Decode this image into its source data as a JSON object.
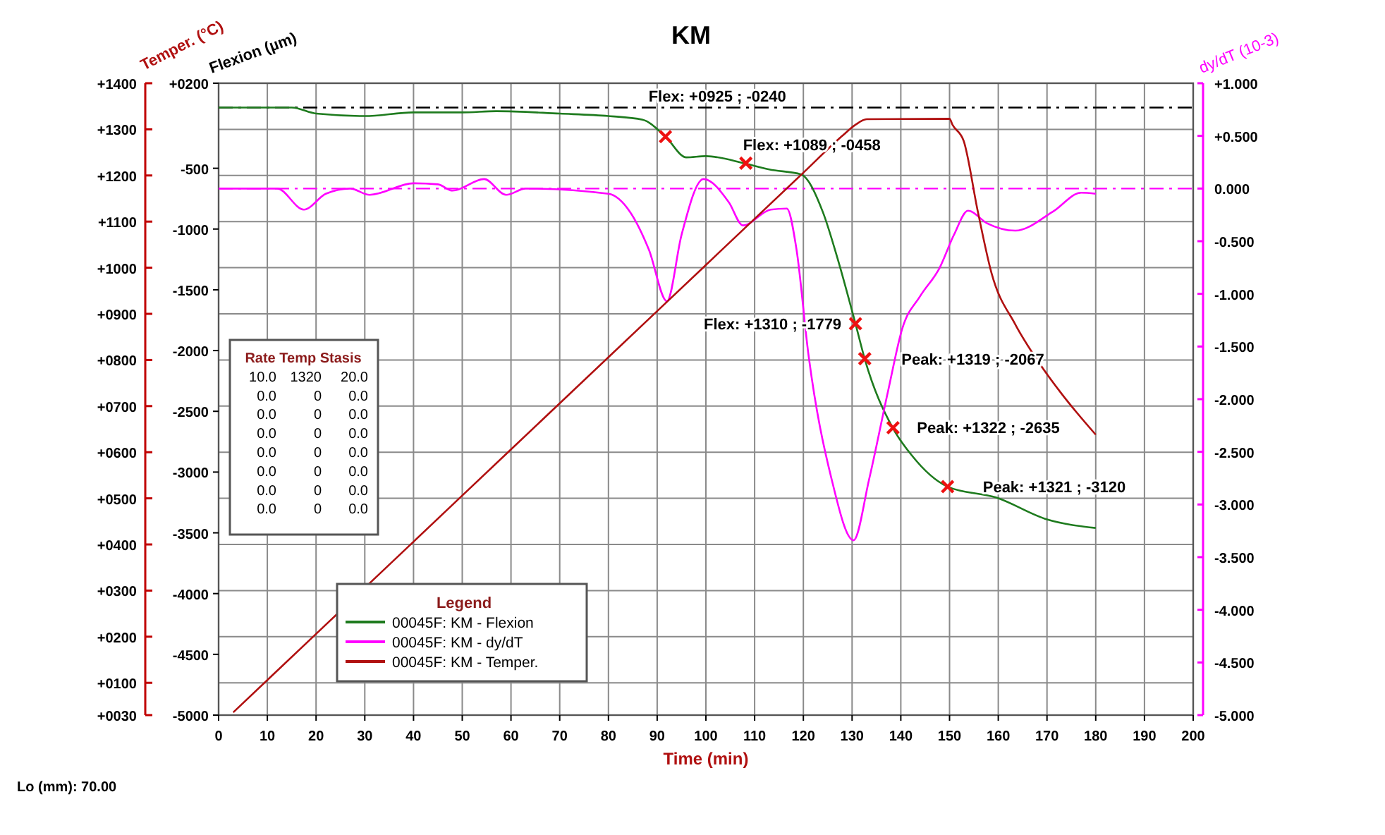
{
  "chart_data": {
    "type": "line",
    "title": "KM",
    "xlabel": "Time (min)",
    "ylabel": "Temper. (°C)",
    "y2label": "dy/dT (10-3)",
    "y3label": "Flexion (µm)",
    "legend_title": "Legend",
    "legend": "bottom left",
    "grid": true,
    "marker": "none",
    "line_style": "solid",
    "xlim": [
      0,
      200
    ],
    "xticks": [
      0,
      10,
      20,
      30,
      40,
      50,
      60,
      70,
      80,
      90,
      100,
      110,
      120,
      130,
      140,
      150,
      160,
      170,
      180,
      190,
      200
    ],
    "ylim": [
      30,
      1400
    ],
    "yticks": [
      {
        "value": 1400,
        "label": "+1400"
      },
      {
        "value": 1300,
        "label": "+1300"
      },
      {
        "value": 1200,
        "label": "+1200"
      },
      {
        "value": 1100,
        "label": "+1100"
      },
      {
        "value": 1000,
        "label": "+1000"
      },
      {
        "value": 900,
        "label": "+0900"
      },
      {
        "value": 800,
        "label": "+0800"
      },
      {
        "value": 700,
        "label": "+0700"
      },
      {
        "value": 600,
        "label": "+0600"
      },
      {
        "value": 500,
        "label": "+0500"
      },
      {
        "value": 400,
        "label": "+0400"
      },
      {
        "value": 300,
        "label": "+0300"
      },
      {
        "value": 200,
        "label": "+0200"
      },
      {
        "value": 100,
        "label": "+0100"
      },
      {
        "value": 30,
        "label": "+0030"
      }
    ],
    "y2lim": [
      -5,
      1
    ],
    "y2ticks": [
      {
        "value": 1,
        "label": "+1.000"
      },
      {
        "value": 0.5,
        "label": "+0.500"
      },
      {
        "value": 0,
        "label": "0.000"
      },
      {
        "value": -0.5,
        "label": "-0.500"
      },
      {
        "value": -1,
        "label": "-1.000"
      },
      {
        "value": -1.5,
        "label": "-1.500"
      },
      {
        "value": -2,
        "label": "-2.000"
      },
      {
        "value": -2.5,
        "label": "-2.500"
      },
      {
        "value": -3,
        "label": "-3.000"
      },
      {
        "value": -3.5,
        "label": "-3.500"
      },
      {
        "value": -4,
        "label": "-4.000"
      },
      {
        "value": -4.5,
        "label": "-4.500"
      },
      {
        "value": -5,
        "label": "-5.000"
      }
    ],
    "y3lim": [
      -5000,
      200
    ],
    "y3ticks": [
      {
        "value": 200,
        "label": "+0200"
      },
      -500,
      -1000,
      -1500,
      -2000,
      -2500,
      -3000,
      -3500,
      -4000,
      -4500,
      -5000
    ],
    "ref_lines": [
      {
        "axis": "y3",
        "value": 0,
        "color": "#000000",
        "line_style": "dashed"
      },
      {
        "axis": "y2",
        "value": 0,
        "color": "#ff00ff",
        "line_style": "dashed"
      }
    ],
    "series": [
      {
        "name": "00045F: KM - Flexion",
        "color": "#1e7b1e",
        "axis": "y3",
        "x": [
          0,
          10,
          15,
          20,
          30,
          40,
          50,
          57,
          70,
          80,
          87,
          91.7,
          96,
          100,
          108,
          113,
          119.5,
          124,
          127,
          130.7,
          132.6,
          138.4,
          142.2,
          149.6,
          159.6,
          170,
          180
        ],
        "values": [
          0,
          0,
          0,
          -50,
          -70,
          -40,
          -40,
          -30,
          -50,
          -70,
          -100,
          -240,
          -410,
          -400,
          -460,
          -510,
          -550,
          -860,
          -1240,
          -1780,
          -2070,
          -2640,
          -2860,
          -3120,
          -3210,
          -3390,
          -3460
        ]
      },
      {
        "name": "00045F: KM - dy/dT",
        "color": "#ff00ff",
        "axis": "y2",
        "x": [
          0,
          12,
          17.5,
          22,
          27,
          31,
          40,
          45,
          48,
          54.5,
          59,
          63,
          80,
          84.4,
          88.3,
          92,
          95,
          99.5,
          104.7,
          107.6,
          113.3,
          116.6,
          118.6,
          121,
          125.8,
          130.3,
          133.5,
          137.4,
          140.3,
          144,
          148,
          150.9,
          153.8,
          157.7,
          163.5,
          171.2,
          177,
          180
        ],
        "values": [
          0,
          0,
          -0.2,
          -0.05,
          0,
          -0.06,
          0.05,
          0.04,
          -0.02,
          0.09,
          -0.06,
          0,
          -0.05,
          -0.22,
          -0.58,
          -1.07,
          -0.44,
          0.09,
          -0.13,
          -0.35,
          -0.2,
          -0.19,
          -0.58,
          -1.56,
          -2.76,
          -3.34,
          -2.76,
          -1.92,
          -1.33,
          -1.02,
          -0.75,
          -0.44,
          -0.21,
          -0.33,
          -0.4,
          -0.22,
          -0.04,
          -0.05
        ]
      },
      {
        "name": "00045F: KM - Temper.",
        "color": "#b01010",
        "x": [
          3,
          20,
          40,
          60,
          80,
          100,
          120,
          128,
          130.7,
          133,
          150,
          150.6,
          152.9,
          155.8,
          158.6,
          163.5,
          168.3,
          173.2,
          180
        ],
        "values": [
          36,
          206,
          406,
          606,
          806,
          1006,
          1206,
          1286,
          1310,
          1322,
          1323,
          1310,
          1275,
          1122,
          989,
          877,
          795,
          724,
          638
        ]
      },
      {
        "type": "scatter",
        "marker": "cross",
        "color": "#ee1111",
        "axis": "y3",
        "x": [
          91.7,
          108.2,
          130.7,
          132.6,
          138.4,
          149.6
        ],
        "values": [
          -240,
          -458,
          -1779,
          -2067,
          -2635,
          -3120
        ]
      }
    ],
    "annotations": [
      "Flex: +0925 ; -0240",
      "Flex: +1089 ; -0458",
      "Flex: +1310 ; -1779",
      "Peak: +1319 ; -2067",
      "Peak: +1322 ; -2635",
      "Peak: +1321 ; -3120",
      "Rate Temp Stasis",
      "10.0 1320 20.0",
      "0.0 0 0.0",
      "0.0 0 0.0",
      "0.0 0 0.0",
      "0.0 0 0.0",
      "0.0 0 0.0",
      "0.0 0 0.0",
      "0.0 0 0.0",
      "Lo (mm): 70.00"
    ]
  }
}
